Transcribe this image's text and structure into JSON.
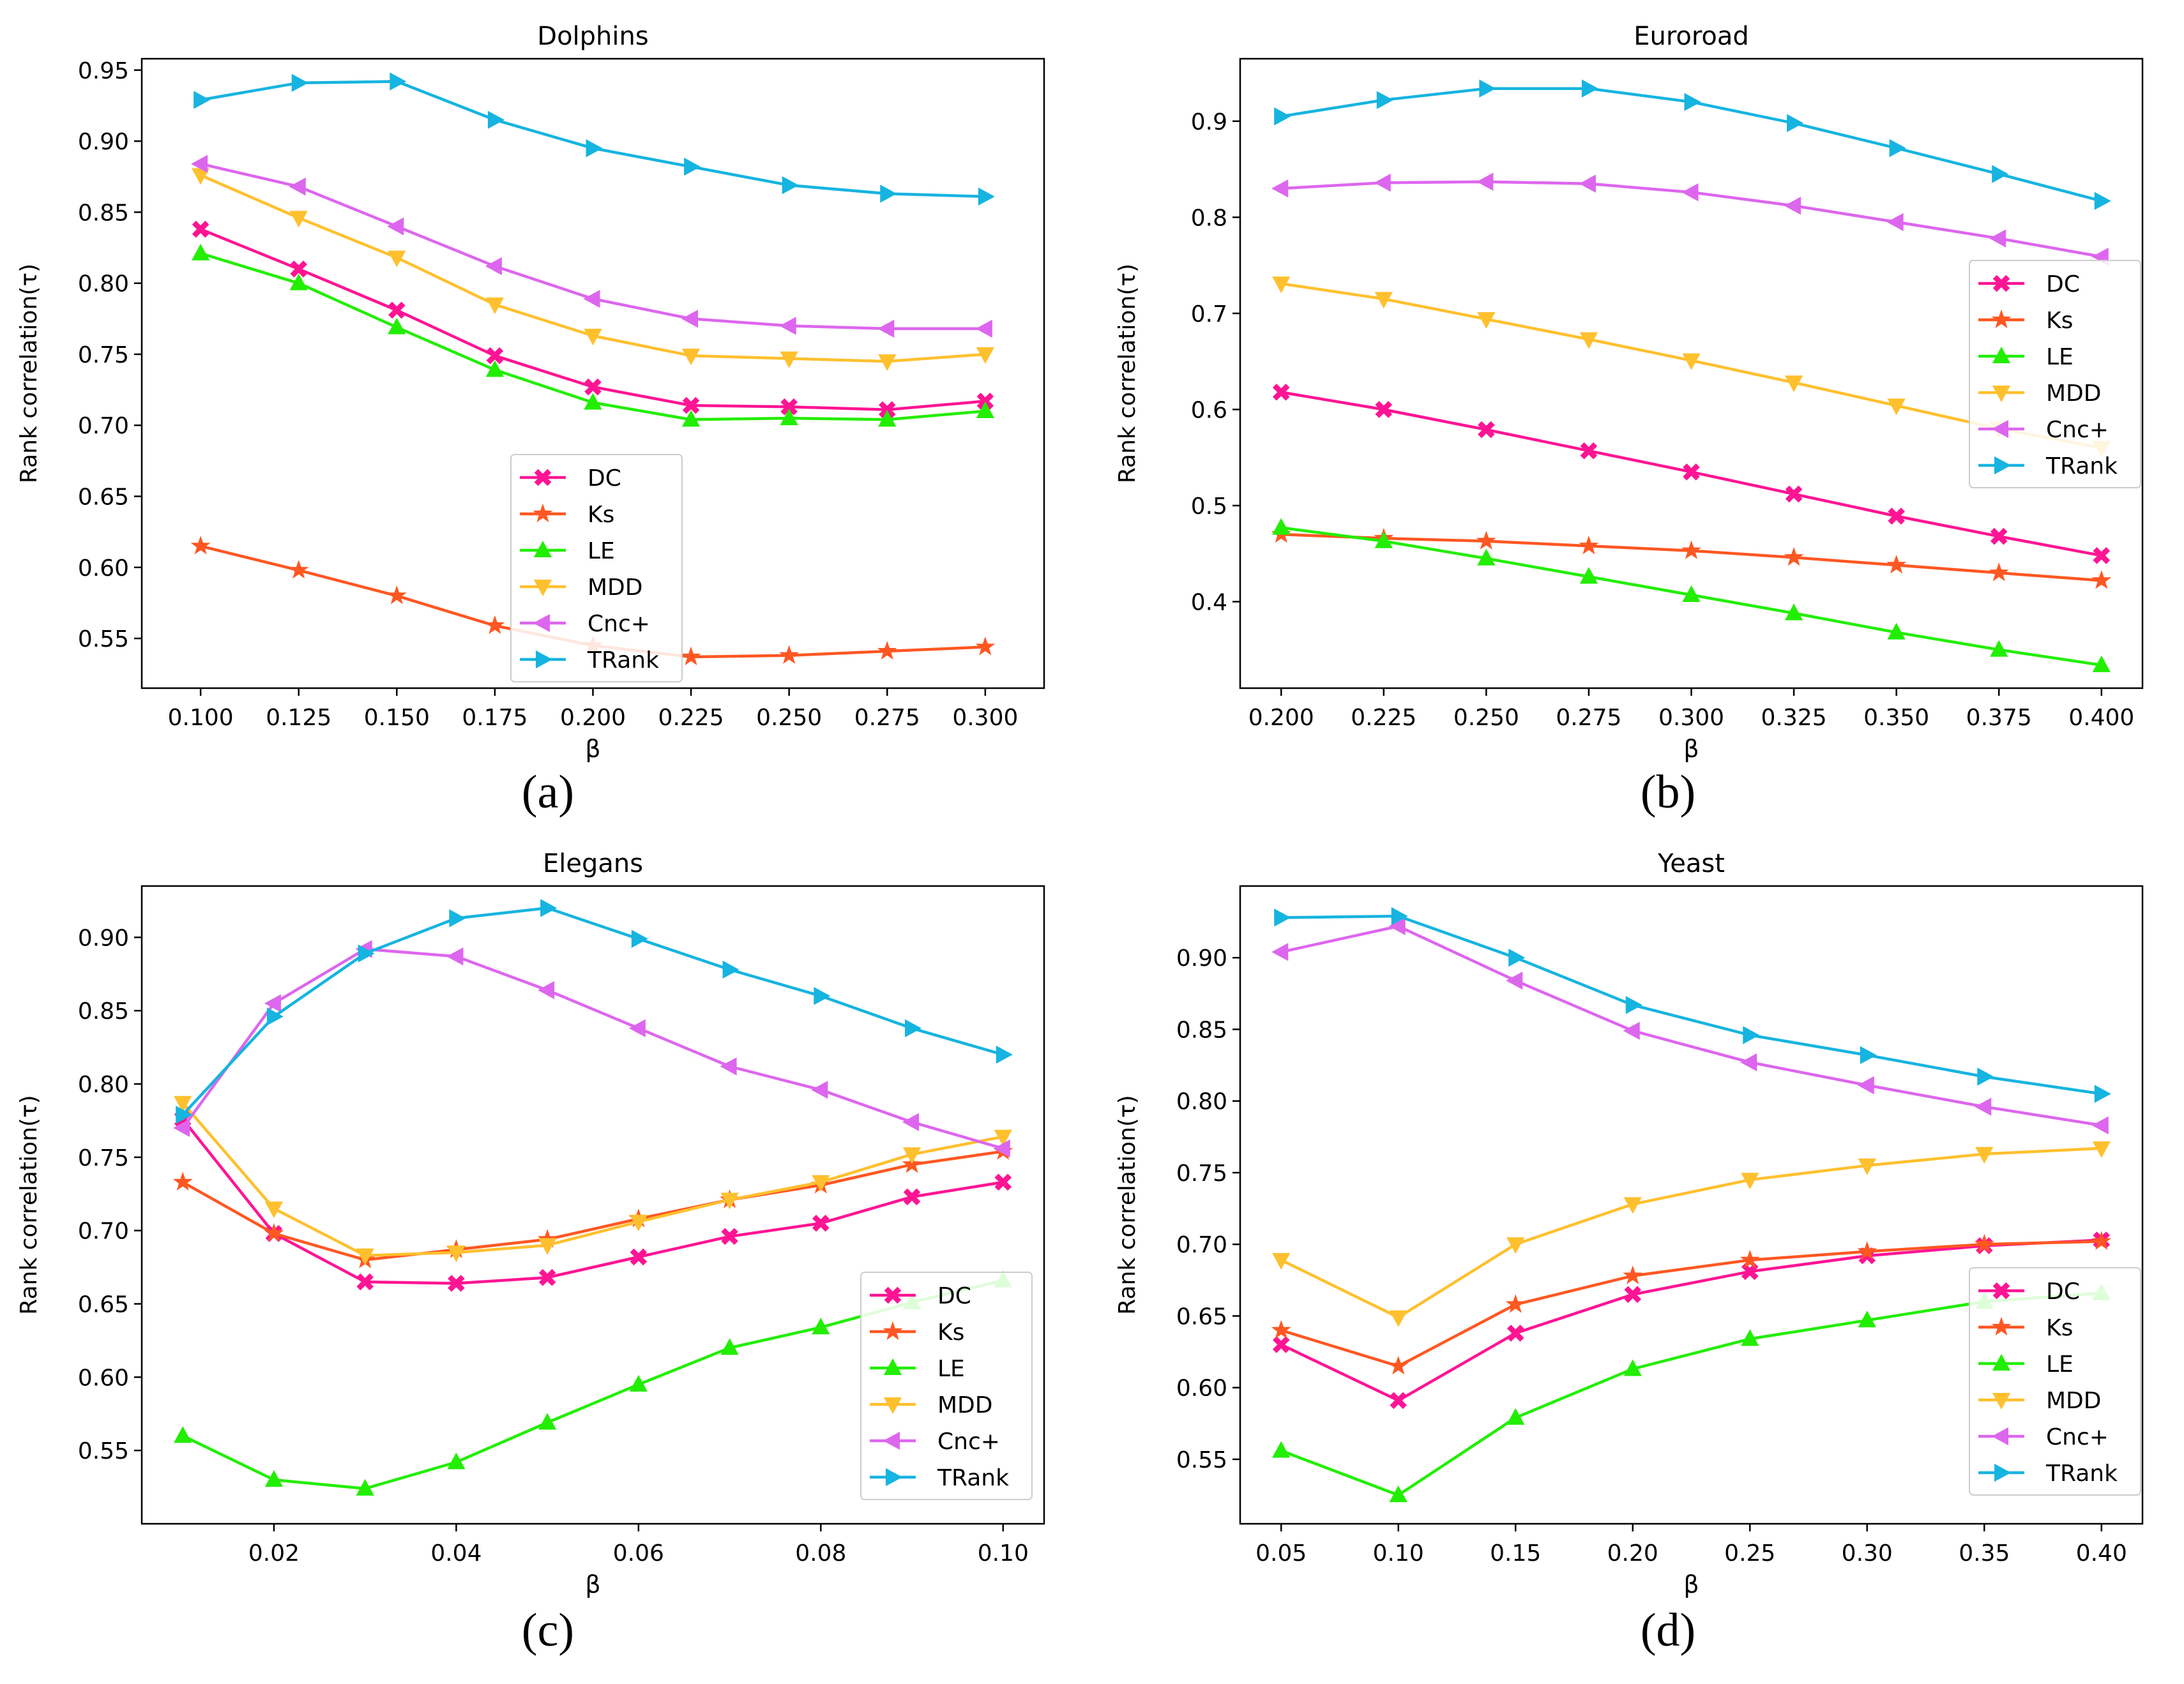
{
  "chart_data": [
    {
      "type": "line",
      "caption": "(a)",
      "title": "Dolphins",
      "xlabel": "β",
      "ylabel": "Rank correlation(τ)",
      "xlim": [
        0.085,
        0.315
      ],
      "ylim": [
        0.515,
        0.958
      ],
      "x_ticks": [
        0.1,
        0.125,
        0.15,
        0.175,
        0.2,
        0.225,
        0.25,
        0.275,
        0.3
      ],
      "x_tick_labels": [
        "0.100",
        "0.125",
        "0.150",
        "0.175",
        "0.200",
        "0.225",
        "0.250",
        "0.275",
        "0.300"
      ],
      "y_ticks": [
        0.55,
        0.6,
        0.65,
        0.7,
        0.75,
        0.8,
        0.85,
        0.9,
        0.95
      ],
      "y_tick_labels": [
        "0.55",
        "0.60",
        "0.65",
        "0.70",
        "0.75",
        "0.80",
        "0.85",
        "0.90",
        "0.95"
      ],
      "legend_position": "lower-center",
      "x": [
        0.1,
        0.125,
        0.15,
        0.175,
        0.2,
        0.225,
        0.25,
        0.275,
        0.3
      ],
      "series": [
        {
          "name": "DC",
          "color": "#ff1493",
          "marker": "X",
          "values": [
            0.838,
            0.81,
            0.781,
            0.749,
            0.727,
            0.714,
            0.713,
            0.711,
            0.717
          ]
        },
        {
          "name": "Ks",
          "color": "#ff5722",
          "marker": "star",
          "values": [
            0.615,
            0.598,
            0.58,
            0.559,
            0.545,
            0.537,
            0.538,
            0.541,
            0.544
          ]
        },
        {
          "name": "LE",
          "color": "#22ee00",
          "marker": "triangle-up",
          "values": [
            0.821,
            0.8,
            0.769,
            0.739,
            0.716,
            0.704,
            0.705,
            0.704,
            0.71
          ]
        },
        {
          "name": "MDD",
          "color": "#ffc02e",
          "marker": "triangle-down",
          "values": [
            0.876,
            0.846,
            0.818,
            0.785,
            0.763,
            0.749,
            0.747,
            0.745,
            0.75
          ]
        },
        {
          "name": "Cnc+",
          "color": "#dd66ee",
          "marker": "triangle-left",
          "values": [
            0.884,
            0.868,
            0.84,
            0.812,
            0.789,
            0.775,
            0.77,
            0.768,
            0.768
          ]
        },
        {
          "name": "TRank",
          "color": "#16b4e0",
          "marker": "triangle-right",
          "values": [
            0.929,
            0.941,
            0.942,
            0.915,
            0.895,
            0.882,
            0.869,
            0.863,
            0.861
          ]
        }
      ]
    },
    {
      "type": "line",
      "caption": "(b)",
      "title": "Euroroad",
      "xlabel": "β",
      "ylabel": "Rank correlation(τ)",
      "xlim": [
        0.19,
        0.41
      ],
      "ylim": [
        0.31,
        0.965
      ],
      "x_ticks": [
        0.2,
        0.225,
        0.25,
        0.275,
        0.3,
        0.325,
        0.35,
        0.375,
        0.4
      ],
      "x_tick_labels": [
        "0.200",
        "0.225",
        "0.250",
        "0.275",
        "0.300",
        "0.325",
        "0.350",
        "0.375",
        "0.400"
      ],
      "y_ticks": [
        0.4,
        0.5,
        0.6,
        0.7,
        0.8,
        0.9
      ],
      "y_tick_labels": [
        "0.4",
        "0.5",
        "0.6",
        "0.7",
        "0.8",
        "0.9"
      ],
      "legend_position": "center-right",
      "x": [
        0.2,
        0.225,
        0.25,
        0.275,
        0.3,
        0.325,
        0.35,
        0.375,
        0.4
      ],
      "series": [
        {
          "name": "DC",
          "color": "#ff1493",
          "marker": "X",
          "values": [
            0.618,
            0.6,
            0.579,
            0.557,
            0.535,
            0.512,
            0.489,
            0.468,
            0.448
          ]
        },
        {
          "name": "Ks",
          "color": "#ff5722",
          "marker": "star",
          "values": [
            0.47,
            0.466,
            0.463,
            0.458,
            0.453,
            0.446,
            0.438,
            0.43,
            0.422
          ]
        },
        {
          "name": "LE",
          "color": "#22ee00",
          "marker": "triangle-up",
          "values": [
            0.477,
            0.463,
            0.445,
            0.426,
            0.407,
            0.388,
            0.368,
            0.35,
            0.334
          ]
        },
        {
          "name": "MDD",
          "color": "#ffc02e",
          "marker": "triangle-down",
          "values": [
            0.731,
            0.715,
            0.694,
            0.673,
            0.651,
            0.628,
            0.604,
            0.58,
            0.56
          ]
        },
        {
          "name": "Cnc+",
          "color": "#dd66ee",
          "marker": "triangle-left",
          "values": [
            0.83,
            0.836,
            0.837,
            0.835,
            0.826,
            0.812,
            0.795,
            0.778,
            0.759
          ]
        },
        {
          "name": "TRank",
          "color": "#16b4e0",
          "marker": "triangle-right",
          "values": [
            0.905,
            0.922,
            0.934,
            0.934,
            0.92,
            0.898,
            0.872,
            0.845,
            0.817
          ]
        }
      ]
    },
    {
      "type": "line",
      "caption": "(c)",
      "title": "Elegans",
      "xlabel": "β",
      "ylabel": "Rank correlation(τ)",
      "xlim": [
        0.0055,
        0.1045
      ],
      "ylim": [
        0.5,
        0.935
      ],
      "x_ticks": [
        0.02,
        0.04,
        0.06,
        0.08,
        0.1
      ],
      "x_tick_labels": [
        "0.02",
        "0.04",
        "0.06",
        "0.08",
        "0.10"
      ],
      "y_ticks": [
        0.55,
        0.6,
        0.65,
        0.7,
        0.75,
        0.8,
        0.85,
        0.9
      ],
      "y_tick_labels": [
        "0.55",
        "0.60",
        "0.65",
        "0.70",
        "0.75",
        "0.80",
        "0.85",
        "0.90"
      ],
      "legend_position": "lower-right",
      "x": [
        0.01,
        0.02,
        0.03,
        0.04,
        0.05,
        0.06,
        0.07,
        0.08,
        0.09,
        0.1
      ],
      "series": [
        {
          "name": "DC",
          "color": "#ff1493",
          "marker": "X",
          "values": [
            0.776,
            0.698,
            0.665,
            0.664,
            0.668,
            0.682,
            0.696,
            0.705,
            0.723,
            0.733
          ]
        },
        {
          "name": "Ks",
          "color": "#ff5722",
          "marker": "star",
          "values": [
            0.733,
            0.698,
            0.68,
            0.687,
            0.694,
            0.708,
            0.721,
            0.731,
            0.745,
            0.754
          ]
        },
        {
          "name": "LE",
          "color": "#22ee00",
          "marker": "triangle-up",
          "values": [
            0.56,
            0.53,
            0.524,
            0.542,
            0.569,
            0.595,
            0.62,
            0.634,
            0.651,
            0.666
          ]
        },
        {
          "name": "MDD",
          "color": "#ffc02e",
          "marker": "triangle-down",
          "values": [
            0.787,
            0.715,
            0.683,
            0.685,
            0.69,
            0.706,
            0.721,
            0.733,
            0.752,
            0.764
          ]
        },
        {
          "name": "Cnc+",
          "color": "#dd66ee",
          "marker": "triangle-left",
          "values": [
            0.77,
            0.855,
            0.892,
            0.887,
            0.864,
            0.838,
            0.812,
            0.796,
            0.774,
            0.756
          ]
        },
        {
          "name": "TRank",
          "color": "#16b4e0",
          "marker": "triangle-right",
          "values": [
            0.779,
            0.846,
            0.889,
            0.913,
            0.92,
            0.899,
            0.878,
            0.86,
            0.838,
            0.82
          ]
        }
      ]
    },
    {
      "type": "line",
      "caption": "(d)",
      "title": "Yeast",
      "xlabel": "β",
      "ylabel": "Rank correlation(τ)",
      "xlim": [
        0.0325,
        0.4175
      ],
      "ylim": [
        0.505,
        0.95
      ],
      "x_ticks": [
        0.05,
        0.1,
        0.15,
        0.2,
        0.25,
        0.3,
        0.35,
        0.4
      ],
      "x_tick_labels": [
        "0.05",
        "0.10",
        "0.15",
        "0.20",
        "0.25",
        "0.30",
        "0.35",
        "0.40"
      ],
      "y_ticks": [
        0.55,
        0.6,
        0.65,
        0.7,
        0.75,
        0.8,
        0.85,
        0.9
      ],
      "y_tick_labels": [
        "0.55",
        "0.60",
        "0.65",
        "0.70",
        "0.75",
        "0.80",
        "0.85",
        "0.90"
      ],
      "legend_position": "lower-right",
      "x": [
        0.05,
        0.1,
        0.15,
        0.2,
        0.25,
        0.3,
        0.35,
        0.4
      ],
      "series": [
        {
          "name": "DC",
          "color": "#ff1493",
          "marker": "X",
          "values": [
            0.63,
            0.591,
            0.638,
            0.665,
            0.681,
            0.692,
            0.699,
            0.703
          ]
        },
        {
          "name": "Ks",
          "color": "#ff5722",
          "marker": "star",
          "values": [
            0.64,
            0.615,
            0.658,
            0.678,
            0.689,
            0.695,
            0.7,
            0.702
          ]
        },
        {
          "name": "LE",
          "color": "#22ee00",
          "marker": "triangle-up",
          "values": [
            0.556,
            0.525,
            0.579,
            0.613,
            0.634,
            0.647,
            0.66,
            0.666
          ]
        },
        {
          "name": "MDD",
          "color": "#ffc02e",
          "marker": "triangle-down",
          "values": [
            0.689,
            0.649,
            0.7,
            0.728,
            0.745,
            0.755,
            0.763,
            0.767
          ]
        },
        {
          "name": "Cnc+",
          "color": "#dd66ee",
          "marker": "triangle-left",
          "values": [
            0.904,
            0.922,
            0.884,
            0.849,
            0.827,
            0.811,
            0.796,
            0.783
          ]
        },
        {
          "name": "TRank",
          "color": "#16b4e0",
          "marker": "triangle-right",
          "values": [
            0.928,
            0.929,
            0.9,
            0.867,
            0.846,
            0.832,
            0.817,
            0.805
          ]
        }
      ]
    }
  ]
}
